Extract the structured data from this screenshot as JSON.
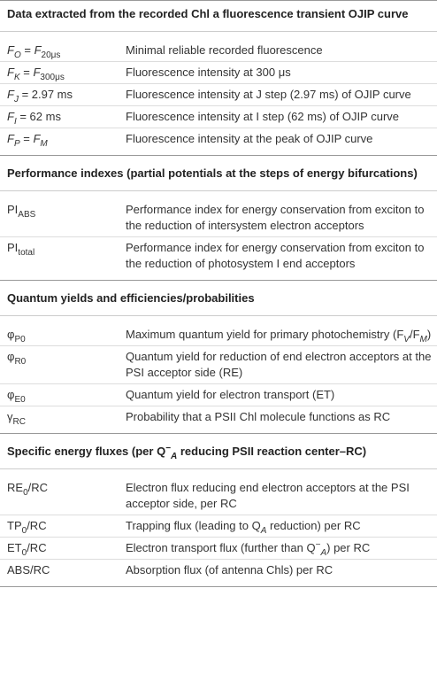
{
  "sections": [
    {
      "title": [
        {
          "t": "Data extracted from the recorded Chl a fluorescence transient OJIP curve"
        }
      ],
      "rows": [
        {
          "term": [
            {
              "t": "F",
              "s": "i"
            },
            {
              "t": "O",
              "s": "sub-i"
            },
            {
              "t": " = "
            },
            {
              "t": "F",
              "s": "i"
            },
            {
              "t": "20μs",
              "s": "sub"
            }
          ],
          "description": [
            {
              "t": "Minimal reliable recorded fluorescence"
            }
          ]
        },
        {
          "term": [
            {
              "t": "F",
              "s": "i"
            },
            {
              "t": "K",
              "s": "sub-i"
            },
            {
              "t": " = "
            },
            {
              "t": "F",
              "s": "i"
            },
            {
              "t": "300μs",
              "s": "sub"
            }
          ],
          "description": [
            {
              "t": "Fluorescence intensity at 300 μs"
            }
          ]
        },
        {
          "term": [
            {
              "t": "F",
              "s": "i"
            },
            {
              "t": "J",
              "s": "sub-i"
            },
            {
              "t": " = 2.97 ms"
            }
          ],
          "description": [
            {
              "t": "Fluorescence intensity at J step (2.97 ms) of OJIP curve"
            }
          ]
        },
        {
          "term": [
            {
              "t": "F",
              "s": "i"
            },
            {
              "t": "I",
              "s": "sub-i"
            },
            {
              "t": " = 62 ms"
            }
          ],
          "description": [
            {
              "t": "Fluorescence intensity at I step (62 ms) of OJIP curve"
            }
          ]
        },
        {
          "term": [
            {
              "t": "F",
              "s": "i"
            },
            {
              "t": "P",
              "s": "sub-i"
            },
            {
              "t": " = "
            },
            {
              "t": "F",
              "s": "i"
            },
            {
              "t": "M",
              "s": "sub-i"
            }
          ],
          "description": [
            {
              "t": "Fluorescence intensity at the peak of OJIP curve"
            }
          ]
        }
      ]
    },
    {
      "title": [
        {
          "t": "Performance indexes (partial potentials at the steps of energy bifurcations)"
        }
      ],
      "rows": [
        {
          "term": [
            {
              "t": "PI"
            },
            {
              "t": "ABS",
              "s": "sub"
            }
          ],
          "description": [
            {
              "t": "Performance index for energy conservation from exciton to the reduction of intersystem electron acceptors"
            }
          ]
        },
        {
          "term": [
            {
              "t": "PI"
            },
            {
              "t": "total",
              "s": "sub"
            }
          ],
          "description": [
            {
              "t": "Performance index for energy conservation from exciton to the reduction of photosystem I end acceptors"
            }
          ]
        }
      ]
    },
    {
      "title": [
        {
          "t": "Quantum yields and efficiencies/probabilities"
        }
      ],
      "rows": [
        {
          "term": [
            {
              "t": "φ"
            },
            {
              "t": "P0",
              "s": "sub"
            }
          ],
          "description": [
            {
              "t": "Maximum quantum yield for primary photochemistry ("
            },
            {
              "t": "F"
            },
            {
              "t": "V",
              "s": "sub-i"
            },
            {
              "t": "/F"
            },
            {
              "t": "M",
              "s": "sub-i"
            },
            {
              "t": ")"
            }
          ]
        },
        {
          "term": [
            {
              "t": "φ"
            },
            {
              "t": "R0",
              "s": "sub"
            }
          ],
          "description": [
            {
              "t": "Quantum yield for reduction of end electron acceptors at the PSI acceptor side (RE)"
            }
          ]
        },
        {
          "term": [
            {
              "t": "φ"
            },
            {
              "t": "E0",
              "s": "sub"
            }
          ],
          "description": [
            {
              "t": "Quantum yield for electron transport (ET)"
            }
          ]
        },
        {
          "term": [
            {
              "t": "γ"
            },
            {
              "t": "RC",
              "s": "sub"
            }
          ],
          "description": [
            {
              "t": "Probability that a PSII Chl molecule functions as RC"
            }
          ]
        }
      ]
    },
    {
      "title": [
        {
          "t": "Specific energy fluxes (per Q"
        },
        {
          "t": "−",
          "s": "sup"
        },
        {
          "t": "A",
          "s": "sub-i"
        },
        {
          "t": " reducing PSII reaction center–RC)"
        }
      ],
      "rows": [
        {
          "term": [
            {
              "t": "RE"
            },
            {
              "t": "0",
              "s": "sub"
            },
            {
              "t": "/RC"
            }
          ],
          "description": [
            {
              "t": "Electron flux reducing end electron acceptors at the PSI acceptor side, per RC"
            }
          ]
        },
        {
          "term": [
            {
              "t": "TP"
            },
            {
              "t": "0",
              "s": "sub"
            },
            {
              "t": "/RC"
            }
          ],
          "description": [
            {
              "t": "Trapping flux (leading to Q"
            },
            {
              "t": "A",
              "s": "sub-i"
            },
            {
              "t": " reduction) per RC"
            }
          ]
        },
        {
          "term": [
            {
              "t": "ET"
            },
            {
              "t": "0",
              "s": "sub"
            },
            {
              "t": "/RC"
            }
          ],
          "description": [
            {
              "t": "Electron transport flux (further than Q"
            },
            {
              "t": "−",
              "s": "sup"
            },
            {
              "t": "A",
              "s": "sub-i"
            },
            {
              "t": ") per RC"
            }
          ]
        },
        {
          "term": [
            {
              "t": "ABS/RC"
            }
          ],
          "description": [
            {
              "t": "Absorption flux (of antenna Chls) per RC"
            }
          ]
        }
      ]
    }
  ]
}
